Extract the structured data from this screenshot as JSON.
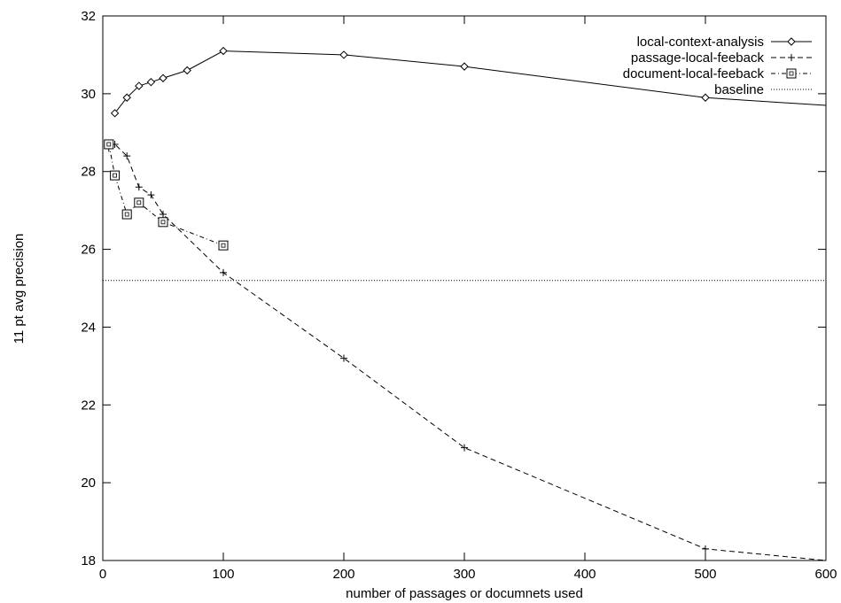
{
  "chart_data": {
    "type": "line",
    "title": "",
    "xlabel": "number of passages or documnets used",
    "ylabel": "11 pt avg precision",
    "xlim": [
      0,
      600
    ],
    "ylim": [
      18,
      32
    ],
    "xticks": [
      0,
      100,
      200,
      300,
      400,
      500,
      600
    ],
    "yticks": [
      18,
      20,
      22,
      24,
      26,
      28,
      30,
      32
    ],
    "grid": false,
    "legend": "top-right",
    "series": [
      {
        "name": "local-context-analysis",
        "marker": "diamond",
        "line": "solid",
        "x": [
          10,
          20,
          30,
          40,
          50,
          70,
          100,
          200,
          300,
          500,
          600
        ],
        "y": [
          29.5,
          29.9,
          30.2,
          30.3,
          30.4,
          30.6,
          31.1,
          31.0,
          30.7,
          29.9,
          29.7
        ]
      },
      {
        "name": "passage-local-feeback",
        "marker": "plus",
        "line": "dashed",
        "x": [
          5,
          10,
          20,
          30,
          40,
          50,
          100,
          200,
          300,
          500,
          600
        ],
        "y": [
          28.6,
          28.7,
          28.4,
          27.6,
          27.4,
          26.9,
          25.4,
          23.2,
          20.9,
          18.3,
          18.0
        ]
      },
      {
        "name": "document-local-feeback",
        "marker": "square",
        "line": "dashdot",
        "x": [
          5,
          10,
          20,
          30,
          50,
          100
        ],
        "y": [
          28.7,
          27.9,
          26.9,
          27.2,
          26.7,
          26.1
        ]
      },
      {
        "name": "baseline",
        "marker": "none",
        "line": "dotted",
        "x": [
          0,
          600
        ],
        "y": [
          25.2,
          25.2
        ]
      }
    ]
  }
}
